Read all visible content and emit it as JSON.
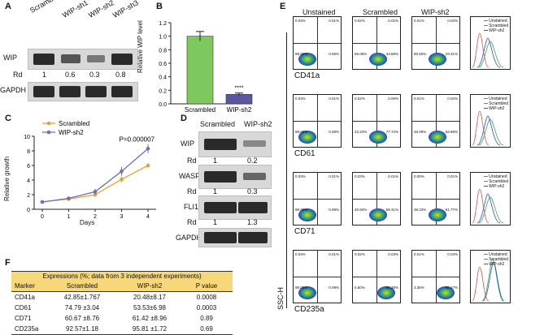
{
  "panel_labels": {
    "a": "A",
    "b": "B",
    "c": "C",
    "d": "D",
    "e": "E",
    "f": "F"
  },
  "panelA": {
    "lanes": [
      "Scrambled",
      "WIP-sh1",
      "WIP-sh2",
      "WIP-sh3"
    ],
    "row1_label": "WIP",
    "rd_label": "Rd",
    "rd_values": [
      "1",
      "0.6",
      "0.3",
      "0.8"
    ],
    "row2_label": "GAPDH"
  },
  "panelB": {
    "ylabel": "Relative WIP level",
    "significance": "****",
    "chart_data": {
      "type": "bar",
      "categories": [
        "Scrambled",
        "WIP-sh2"
      ],
      "values": [
        1.0,
        0.14
      ],
      "errors": [
        0.07,
        0.02
      ],
      "colors": [
        "#7dc95e",
        "#5b55a3"
      ],
      "ylim": [
        0,
        1.2
      ],
      "yticks": [
        "0.0",
        "0.2",
        "0.4",
        "0.6",
        "0.8",
        "1.0",
        "1.2"
      ]
    }
  },
  "panelC": {
    "annotation": "P=0.000007",
    "chart_data": {
      "type": "line",
      "x": [
        0,
        1,
        2,
        3,
        4
      ],
      "xlabel": "Days",
      "ylabel": "Relative growth",
      "ylim": [
        0,
        10
      ],
      "yticks": [
        "0",
        "2",
        "4",
        "6",
        "8",
        "10"
      ],
      "xticks": [
        "0",
        "1",
        "2",
        "3",
        "4"
      ],
      "series": [
        {
          "name": "Scrambled",
          "color": "#f0a030",
          "values": [
            1.0,
            1.4,
            2.0,
            4.1,
            6.0
          ],
          "errors": [
            0.05,
            0.1,
            0.3,
            0.4,
            0.3
          ]
        },
        {
          "name": "WIP-sh2",
          "color": "#6a6fc0",
          "values": [
            1.0,
            1.5,
            2.4,
            5.2,
            8.3
          ],
          "errors": [
            0.05,
            0.1,
            0.4,
            0.6,
            0.6
          ]
        }
      ]
    }
  },
  "panelD": {
    "lanes": [
      "Scrambled",
      "WIP-sh2"
    ],
    "rows": [
      {
        "label": "WIP",
        "rd": [
          "1",
          "0.2"
        ]
      },
      {
        "label": "WASP",
        "rd": [
          "1",
          "0.3"
        ]
      },
      {
        "label": "FLI1",
        "rd": [
          "1",
          "1.3"
        ]
      },
      {
        "label": "GAPDH",
        "rd": null
      }
    ],
    "rd_label": "Rd"
  },
  "panelE": {
    "columns": [
      "Unstained",
      "Scrambled",
      "WIP-sh2"
    ],
    "yaxis_label": "SSC-H",
    "markers": [
      "CD41a",
      "CD61",
      "CD71",
      "CD235a"
    ],
    "hist_legend": [
      "Unstained",
      "Scrambled",
      "WIP-sh2"
    ],
    "quadrants": [
      [
        [
          "0.03%",
          "0.01%",
          "99.90%",
          "0.06%"
        ],
        [
          "0.02%",
          "0.01%",
          "56.09%",
          "43.88%"
        ],
        [
          "0.01%",
          "0.02%",
          "80.60%",
          "19.31%"
        ]
      ],
      [
        [
          "0.03%",
          "0.01%",
          "99.88%",
          "0.08%"
        ],
        [
          "0.02%",
          "0.00%",
          "22.22%",
          "77.72%"
        ],
        [
          "0.01%",
          "0.02%",
          "46.09%",
          "53.88%"
        ]
      ],
      [
        [
          "0.03%",
          "0.01%",
          "99.88%",
          "0.09%"
        ],
        [
          "0.03%",
          "0.01%",
          "40.60%",
          "59.31%"
        ],
        [
          "0.00%",
          "0.01%",
          "38.23%",
          "61.77%"
        ]
      ],
      [
        [
          "0.03%",
          "0.01%",
          "99.88%",
          "0.09%"
        ],
        [
          "0.02%",
          "0.03%",
          "5.60%",
          "94.38%"
        ],
        [
          "0.01%",
          "0.03%",
          "3.36%",
          "96.67%"
        ]
      ]
    ]
  },
  "panelF": {
    "caption": "Expressions (%; data from 3 independent experiments)",
    "headers": [
      "Marker",
      "Scrambled",
      "WIP-sh2",
      "P value"
    ],
    "rows": [
      [
        "CD41a",
        "42.85±1.767",
        "20.48±8.17",
        "0.0008"
      ],
      [
        "CD61",
        "74.79 ±3.04",
        "53.53±6.98",
        "0.0003"
      ],
      [
        "CD71",
        "60.67 ±8.76",
        "61.42 ±8.96",
        "0.89"
      ],
      [
        "CD235a",
        "92.57±1.18",
        "95.81 ±1.72",
        "0.69"
      ]
    ]
  }
}
